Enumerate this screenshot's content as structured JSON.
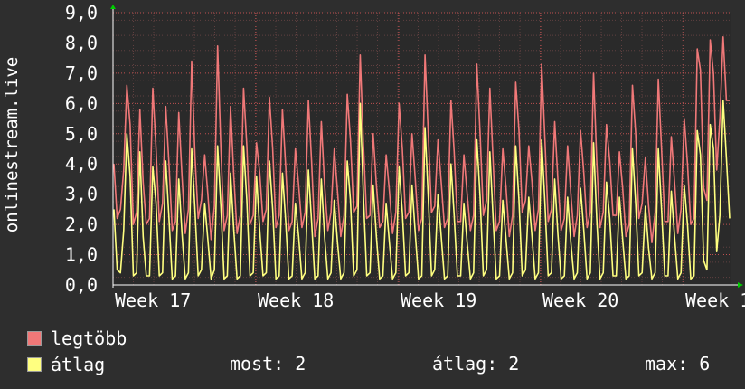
{
  "chart_data": {
    "type": "line",
    "ylabel": "onlinestream.live",
    "ylim": [
      0,
      9
    ],
    "yticks": [
      "0,0",
      "1,0",
      "2,0",
      "3,0",
      "4,0",
      "5,0",
      "6,0",
      "7,0",
      "8,0",
      "9,0"
    ],
    "xticks": [
      "Week 17",
      "Week 18",
      "Week 19",
      "Week 20",
      "Week 1"
    ],
    "grid": true,
    "legend_position": "bottom-left",
    "series": [
      {
        "name": "legtöbb",
        "color": "#f07878",
        "values": [
          4.0,
          2.2,
          2.5,
          3.8,
          6.6,
          5.3,
          2.0,
          2.4,
          5.8,
          3.4,
          2.0,
          2.2,
          6.5,
          4.5,
          2.1,
          2.7,
          5.9,
          4.0,
          1.8,
          2.1,
          5.7,
          3.6,
          1.7,
          2.5,
          7.4,
          4.3,
          2.2,
          2.8,
          4.3,
          3.0,
          1.5,
          2.6,
          7.9,
          4.5,
          1.8,
          2.3,
          5.9,
          3.6,
          1.7,
          2.3,
          6.5,
          4.6,
          2.0,
          2.3,
          4.7,
          3.7,
          2.1,
          2.5,
          6.2,
          4.5,
          1.9,
          2.3,
          5.8,
          3.9,
          1.8,
          2.1,
          4.5,
          3.3,
          1.9,
          2.4,
          6.1,
          4.1,
          1.6,
          2.2,
          5.4,
          3.3,
          1.8,
          2.4,
          4.5,
          3.1,
          1.6,
          2.3,
          6.3,
          4.8,
          2.4,
          2.6,
          7.6,
          4.6,
          2.2,
          2.3,
          5.0,
          3.3,
          1.9,
          2.1,
          4.3,
          3.1,
          1.7,
          2.4,
          6.0,
          4.5,
          2.2,
          2.4,
          5.0,
          3.5,
          1.8,
          2.2,
          7.6,
          5.0,
          2.4,
          2.6,
          4.8,
          3.4,
          1.9,
          2.2,
          6.1,
          4.4,
          2.1,
          2.1,
          4.3,
          3.0,
          1.8,
          2.3,
          7.3,
          5.0,
          2.3,
          2.8,
          6.5,
          4.1,
          1.8,
          2.1,
          4.5,
          3.2,
          1.6,
          2.3,
          6.7,
          5.1,
          2.4,
          2.8,
          4.6,
          3.4,
          1.8,
          2.5,
          7.3,
          4.8,
          2.1,
          2.5,
          5.4,
          3.5,
          1.8,
          2.2,
          4.6,
          3.0,
          1.6,
          2.3,
          5.1,
          3.7,
          1.9,
          2.4,
          7.0,
          4.1,
          1.9,
          2.4,
          5.3,
          4.1,
          2.3,
          2.3,
          4.4,
          3.2,
          1.6,
          2.0,
          6.6,
          5.0,
          2.2,
          2.7,
          4.2,
          2.6,
          1.4,
          2.4,
          6.8,
          4.5,
          2.1,
          2.1,
          4.9,
          3.4,
          1.7,
          2.5,
          5.5,
          4.0,
          2.0,
          2.2,
          7.8,
          7.1,
          3.2,
          2.8,
          8.1,
          7.0,
          3.8,
          5.5,
          8.2,
          6.1,
          6.1
        ],
        "values_note": ""
      },
      {
        "name": "átlag",
        "color": "#ffff80",
        "values": [
          2.5,
          0.5,
          0.4,
          1.8,
          5.0,
          3.6,
          0.3,
          0.4,
          4.4,
          1.6,
          0.3,
          0.3,
          3.9,
          2.7,
          0.3,
          0.4,
          4.1,
          2.2,
          0.2,
          0.3,
          3.5,
          1.7,
          0.2,
          0.4,
          4.5,
          2.5,
          0.3,
          0.5,
          2.7,
          1.5,
          0.2,
          0.5,
          4.6,
          2.6,
          0.2,
          0.3,
          3.7,
          1.8,
          0.2,
          0.3,
          4.6,
          2.8,
          0.3,
          0.4,
          3.6,
          1.8,
          0.3,
          0.4,
          4.1,
          2.5,
          0.2,
          0.3,
          3.7,
          2.1,
          0.2,
          0.3,
          2.7,
          1.6,
          0.2,
          0.4,
          3.8,
          2.1,
          0.2,
          0.3,
          3.5,
          1.6,
          0.2,
          0.4,
          2.8,
          1.4,
          0.2,
          0.4,
          4.1,
          2.8,
          0.3,
          0.5,
          6.0,
          2.9,
          0.3,
          0.4,
          3.3,
          1.6,
          0.2,
          0.3,
          2.7,
          1.4,
          0.2,
          0.4,
          3.9,
          2.4,
          0.3,
          0.4,
          3.3,
          1.7,
          0.2,
          0.3,
          5.2,
          2.9,
          0.3,
          0.5,
          3.0,
          1.6,
          0.2,
          0.3,
          4.0,
          2.3,
          0.3,
          0.3,
          2.7,
          1.4,
          0.2,
          0.4,
          4.8,
          2.9,
          0.3,
          0.5,
          4.4,
          2.2,
          0.2,
          0.3,
          2.8,
          1.5,
          0.2,
          0.4,
          4.6,
          2.8,
          0.3,
          0.5,
          2.9,
          1.6,
          0.2,
          0.4,
          4.8,
          2.7,
          0.3,
          0.4,
          3.5,
          1.7,
          0.2,
          0.3,
          2.9,
          1.4,
          0.2,
          0.4,
          3.2,
          1.8,
          0.2,
          0.4,
          4.7,
          2.2,
          0.2,
          0.4,
          3.4,
          2.2,
          0.3,
          0.3,
          2.9,
          1.5,
          0.2,
          0.3,
          4.5,
          2.7,
          0.3,
          0.4,
          2.6,
          1.2,
          0.2,
          0.4,
          4.5,
          2.5,
          0.3,
          0.3,
          3.1,
          1.6,
          0.2,
          0.4,
          3.3,
          2.0,
          0.2,
          0.3,
          5.1,
          4.3,
          0.8,
          0.5,
          5.3,
          4.5,
          1.1,
          2.3,
          6.1,
          4.2,
          2.2
        ]
      }
    ]
  },
  "legend": {
    "items": [
      {
        "label": "legtöbb",
        "color": "#f07878"
      },
      {
        "label": "átlag",
        "color": "#ffff80"
      }
    ],
    "stats": {
      "most": "most: 2",
      "atlag": "átlag: 2",
      "max": "max: 6"
    }
  },
  "colors": {
    "background": "#2e2e2e",
    "plot_background": "#2a2a2a",
    "grid_major": "#c05050",
    "grid_minor": "#604040",
    "arrow": "#00cc00"
  }
}
